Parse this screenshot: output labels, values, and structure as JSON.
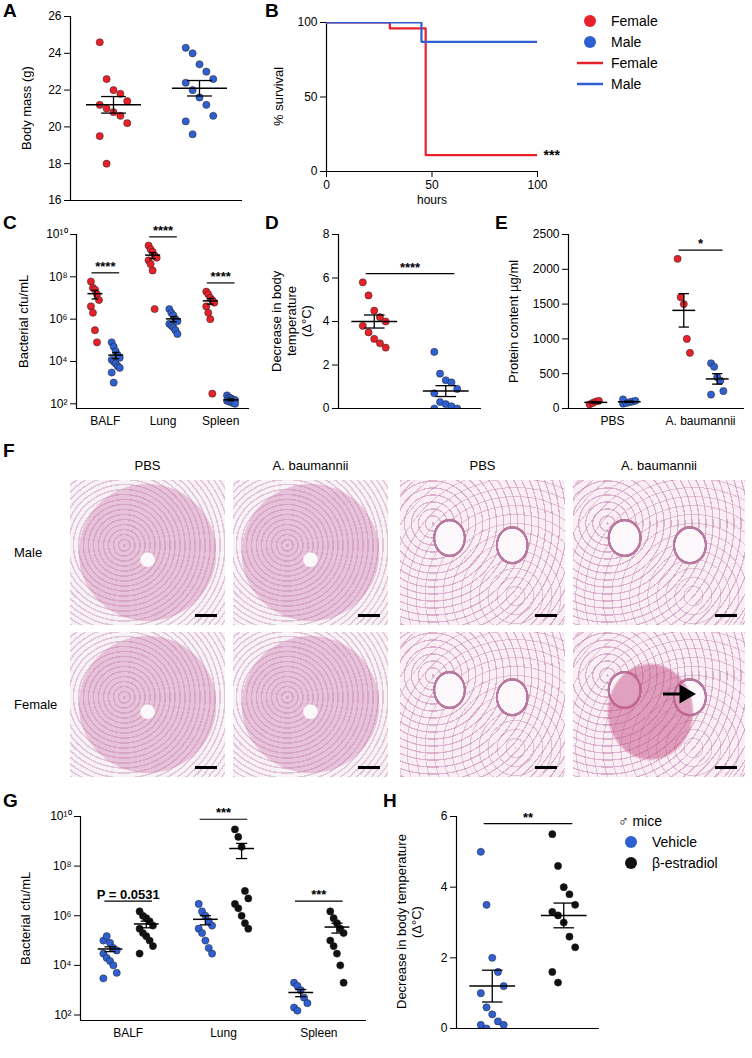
{
  "chart_data": [
    {
      "type": "dotplot",
      "title": "A",
      "ylabel": "Body mass (g)",
      "categories": [
        null
      ],
      "tick_labels": "y",
      "ylim": [
        16,
        26
      ],
      "yticks": [
        16,
        18,
        20,
        22,
        24,
        26
      ],
      "series": [
        {
          "color": "#e8202a",
          "values": [
            [
              24.6,
              22.6,
              22.0,
              21.8,
              21.4,
              21.2,
              21.0,
              20.8,
              20.6,
              20.2,
              19.5,
              18.0
            ]
          ],
          "mean": [
            21.2
          ],
          "sem": [
            0.45
          ]
        },
        {
          "color": "#2f5fd0",
          "values": [
            [
              24.3,
              24.0,
              23.4,
              23.0,
              22.6,
              22.4,
              22.0,
              21.6,
              21.2,
              20.6,
              20.3,
              19.6
            ]
          ],
          "mean": [
            22.1
          ],
          "sem": [
            0.42
          ]
        }
      ]
    },
    {
      "type": "line",
      "title": "B",
      "ylabel": "% survival",
      "xlabel": "hours",
      "line_style": "step",
      "marker": "circle",
      "legend": "top-right",
      "xlim": [
        0,
        100
      ],
      "xticks": [
        0,
        50,
        100
      ],
      "ylim": [
        0,
        100
      ],
      "yticks": [
        0,
        50,
        100
      ],
      "series": [
        {
          "name": "Female",
          "color": "#e8202a",
          "x": [
            0,
            30,
            47,
            100
          ],
          "values": [
            100,
            96,
            11,
            11
          ]
        },
        {
          "name": "Male",
          "color": "#2f5fd0",
          "x": [
            0,
            45,
            100
          ],
          "values": [
            100,
            87,
            87
          ]
        }
      ],
      "annotations": [
        {
          "text": "***",
          "x": 100,
          "y": 11
        }
      ]
    },
    {
      "type": "dotplot",
      "title": "C",
      "ylabel": "Bacterial cfu/mL",
      "log": "y",
      "categories": [
        "BALF",
        "Lung",
        "Spleen"
      ],
      "ylim": [
        60,
        10000000000
      ],
      "yticks": [
        {
          "value": 100,
          "label": "10²"
        },
        {
          "value": 10000,
          "label": "10⁴"
        },
        {
          "value": 1000000,
          "label": "10⁶"
        },
        {
          "value": 100000000,
          "label": "10⁸"
        },
        {
          "value": 10000000000,
          "label": "10¹⁰"
        }
      ],
      "significance": [
        "****",
        "****",
        "****"
      ],
      "series": [
        {
          "color": "#e8202a",
          "values": [
            [
              60000000,
              30000000,
              25000000,
              15000000,
              8000000,
              4000000,
              2000000,
              300000,
              80000
            ],
            [
              3000000000,
              2000000000,
              1500000000,
              1000000000,
              800000000,
              600000000,
              400000000,
              200000000,
              3000000
            ],
            [
              20000000,
              15000000,
              10000000,
              8000000,
              6000000,
              4000000,
              2000000,
              1000000,
              300
            ]
          ],
          "mean": [
            16000000,
            1060000000,
            7300000
          ],
          "sem": [
            7000000,
            330000000,
            2200000
          ]
        },
        {
          "color": "#2f5fd0",
          "values": [
            [
              80000,
              50000,
              30000,
              20000,
              15000,
              12000,
              10000,
              8000,
              6000,
              5000,
              3000,
              1000
            ],
            [
              3000000,
              2000000,
              1500000,
              1000000,
              800000,
              600000,
              500000,
              400000,
              300000,
              200000
            ],
            [
              250,
              200,
              180,
              160,
              150,
              140,
              130,
              120,
              110,
              100
            ]
          ],
          "mean": [
            20000,
            1030000,
            154
          ],
          "sem": [
            6500,
            280000,
            14
          ]
        }
      ]
    },
    {
      "type": "dotplot",
      "title": "D",
      "ylabel": "Decrease in body temperature\n(Δ°C)",
      "categories": [
        null
      ],
      "ylim": [
        0,
        8
      ],
      "yticks": [
        0,
        2,
        4,
        6,
        8
      ],
      "significance": [
        "****"
      ],
      "series": [
        {
          "color": "#e8202a",
          "values": [
            [
              5.8,
              5.2,
              4.5,
              4.2,
              4.0,
              3.8,
              3.5,
              3.2,
              3.0,
              2.8
            ]
          ],
          "mean": [
            4.0
          ],
          "sem": [
            0.3
          ]
        },
        {
          "color": "#2f5fd0",
          "values": [
            [
              2.6,
              1.6,
              1.3,
              1.2,
              0.9,
              0.7,
              0.3,
              0.2,
              0.1,
              0.0,
              0.0
            ]
          ],
          "mean": [
            0.8
          ],
          "sem": [
            0.25
          ]
        }
      ]
    },
    {
      "type": "dotplot",
      "title": "E",
      "ylabel": "Protein content µg/ml",
      "categories": [
        "PBS",
        "A. baumannii"
      ],
      "ylim": [
        0,
        2500
      ],
      "yticks": [
        0,
        500,
        1000,
        1500,
        2000,
        2500
      ],
      "significance": [
        null,
        "*"
      ],
      "series": [
        {
          "color": "#e8202a",
          "values": [
            [
              60,
              80,
              100,
              110
            ],
            [
              2150,
              1600,
              1500,
              1000,
              800
            ]
          ],
          "mean": [
            88,
            1410
          ],
          "sem": [
            11,
            240
          ]
        },
        {
          "color": "#2f5fd0",
          "values": [
            [
              70,
              80,
              90,
              100,
              110,
              130
            ],
            [
              650,
              600,
              450,
              400,
              250,
              200
            ]
          ],
          "mean": [
            97,
            425
          ],
          "sem": [
            9,
            75
          ]
        }
      ]
    },
    {
      "type": "image_grid",
      "title": "F",
      "columns": [
        "PBS",
        "A. baumannii",
        "PBS",
        "A. baumannii"
      ],
      "rows": [
        "Male",
        "Female"
      ]
    },
    {
      "type": "dotplot",
      "title": "G",
      "ylabel": "Bacterial cfu/mL",
      "log": "y",
      "categories": [
        "BALF",
        "Lung",
        "Spleen"
      ],
      "ylim": [
        60,
        10000000000
      ],
      "yticks": [
        {
          "value": 100,
          "label": "10²"
        },
        {
          "value": 10000,
          "label": "10⁴"
        },
        {
          "value": 1000000,
          "label": "10⁶"
        },
        {
          "value": 100000000,
          "label": "10⁸"
        },
        {
          "value": 10000000000,
          "label": "10¹⁰"
        }
      ],
      "significance": [
        "P = 0.0531",
        "***",
        "***"
      ],
      "series": [
        {
          "color": "#2f5fd0",
          "values": [
            [
              100000,
              150000,
              80000,
              50000,
              40000,
              30000,
              20000,
              15000,
              10000,
              5000,
              3000
            ],
            [
              3000000,
              1500000,
              1000000,
              600000,
              400000,
              300000,
              200000,
              100000,
              50000,
              30000
            ],
            [
              2000,
              1500,
              1000,
              500,
              300,
              200,
              150
            ]
          ],
          "mean": [
            45700,
            718000,
            807
          ],
          "sem": [
            10000,
            290000,
            260
          ]
        },
        {
          "color": "#111111",
          "values": [
            [
              1500000,
              1000000,
              800000,
              600000,
              400000,
              300000,
              200000,
              150000,
              100000,
              60000,
              30000
            ],
            [
              3000000000,
              1500000000,
              600000000,
              10000000,
              5000000,
              3000000,
              2000000,
              1000000,
              500000,
              300000
            ],
            [
              1500000,
              800000,
              500000,
              300000,
              200000,
              100000,
              60000,
              30000,
              10000,
              2000
            ]
          ],
          "mean": [
            467000,
            512000000,
            350000
          ],
          "sem": [
            140000,
            310000000,
            150000
          ]
        }
      ]
    },
    {
      "type": "dotplot",
      "title": "H",
      "ylabel": "Decrease in body temperature\n(Δ°C)",
      "categories": [
        null
      ],
      "ylim": [
        0,
        6
      ],
      "yticks": [
        0,
        2,
        4,
        6
      ],
      "significance": [
        "**"
      ],
      "legend": "top-right",
      "legend_title": "♂ mice",
      "series": [
        {
          "name": "Vehicle",
          "color": "#2f5fd0",
          "values": [
            [
              5.0,
              3.5,
              2.0,
              1.6,
              1.2,
              1.0,
              0.6,
              0.4,
              0.2,
              0.1,
              0.1,
              0.0
            ]
          ],
          "mean": [
            1.2
          ],
          "sem": [
            0.45
          ]
        },
        {
          "name": "β-estradiol",
          "color": "#111111",
          "values": [
            [
              5.5,
              4.6,
              4.0,
              3.8,
              3.5,
              3.3,
              3.2,
              3.0,
              2.6,
              2.3,
              1.6,
              1.3
            ]
          ],
          "mean": [
            3.2
          ],
          "sem": [
            0.35
          ]
        }
      ]
    }
  ]
}
